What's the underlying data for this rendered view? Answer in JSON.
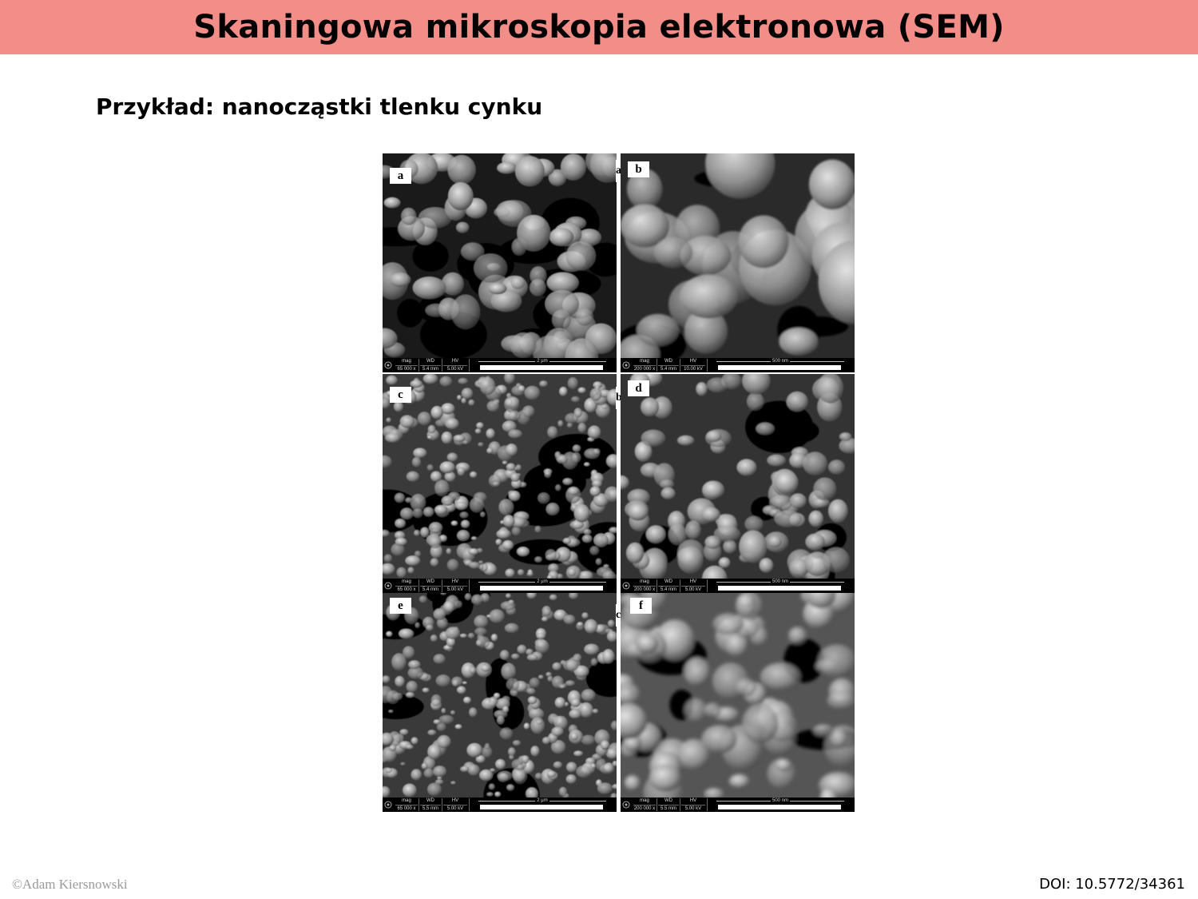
{
  "slide": {
    "title": "Skaningowa mikroskopia elektronowa (SEM)",
    "subtitle": "Przykład: nanocząstki tlenku cynku",
    "credit": "©Adam Kiersnowski",
    "doi": "DOI: 10.5772/34361"
  },
  "figure": {
    "edge_labels": [
      "a",
      "b",
      "c"
    ],
    "panels": [
      {
        "label": "a",
        "mag_key": "mag",
        "mag": "65 000 x",
        "wd_key": "WD",
        "wd": "5.4 mm",
        "hv_key": "HV",
        "hv": "5.00 kV",
        "scale": "2 µm"
      },
      {
        "label": "b",
        "mag_key": "mag",
        "mag": "200 000 x",
        "wd_key": "WD",
        "wd": "5.4 mm",
        "hv_key": "HV",
        "hv": "10.00 kV",
        "scale": "500 nm"
      },
      {
        "label": "c",
        "mag_key": "mag",
        "mag": "65 000 x",
        "wd_key": "WD",
        "wd": "5.4 mm",
        "hv_key": "HV",
        "hv": "5.00 kV",
        "scale": "2 µm"
      },
      {
        "label": "d",
        "mag_key": "mag",
        "mag": "200 000 x",
        "wd_key": "WD",
        "wd": "5.4 mm",
        "hv_key": "HV",
        "hv": "5.00 kV",
        "scale": "500 nm"
      },
      {
        "label": "e",
        "mag_key": "mag",
        "mag": "65 000 x",
        "wd_key": "WD",
        "wd": "5.5 mm",
        "hv_key": "HV",
        "hv": "5.00 kV",
        "scale": "2 µm"
      },
      {
        "label": "f",
        "mag_key": "mag",
        "mag": "200 000 x",
        "wd_key": "WD",
        "wd": "5.5 mm",
        "hv_key": "HV",
        "hv": "5.00 kV",
        "scale": "500 nm"
      }
    ]
  }
}
